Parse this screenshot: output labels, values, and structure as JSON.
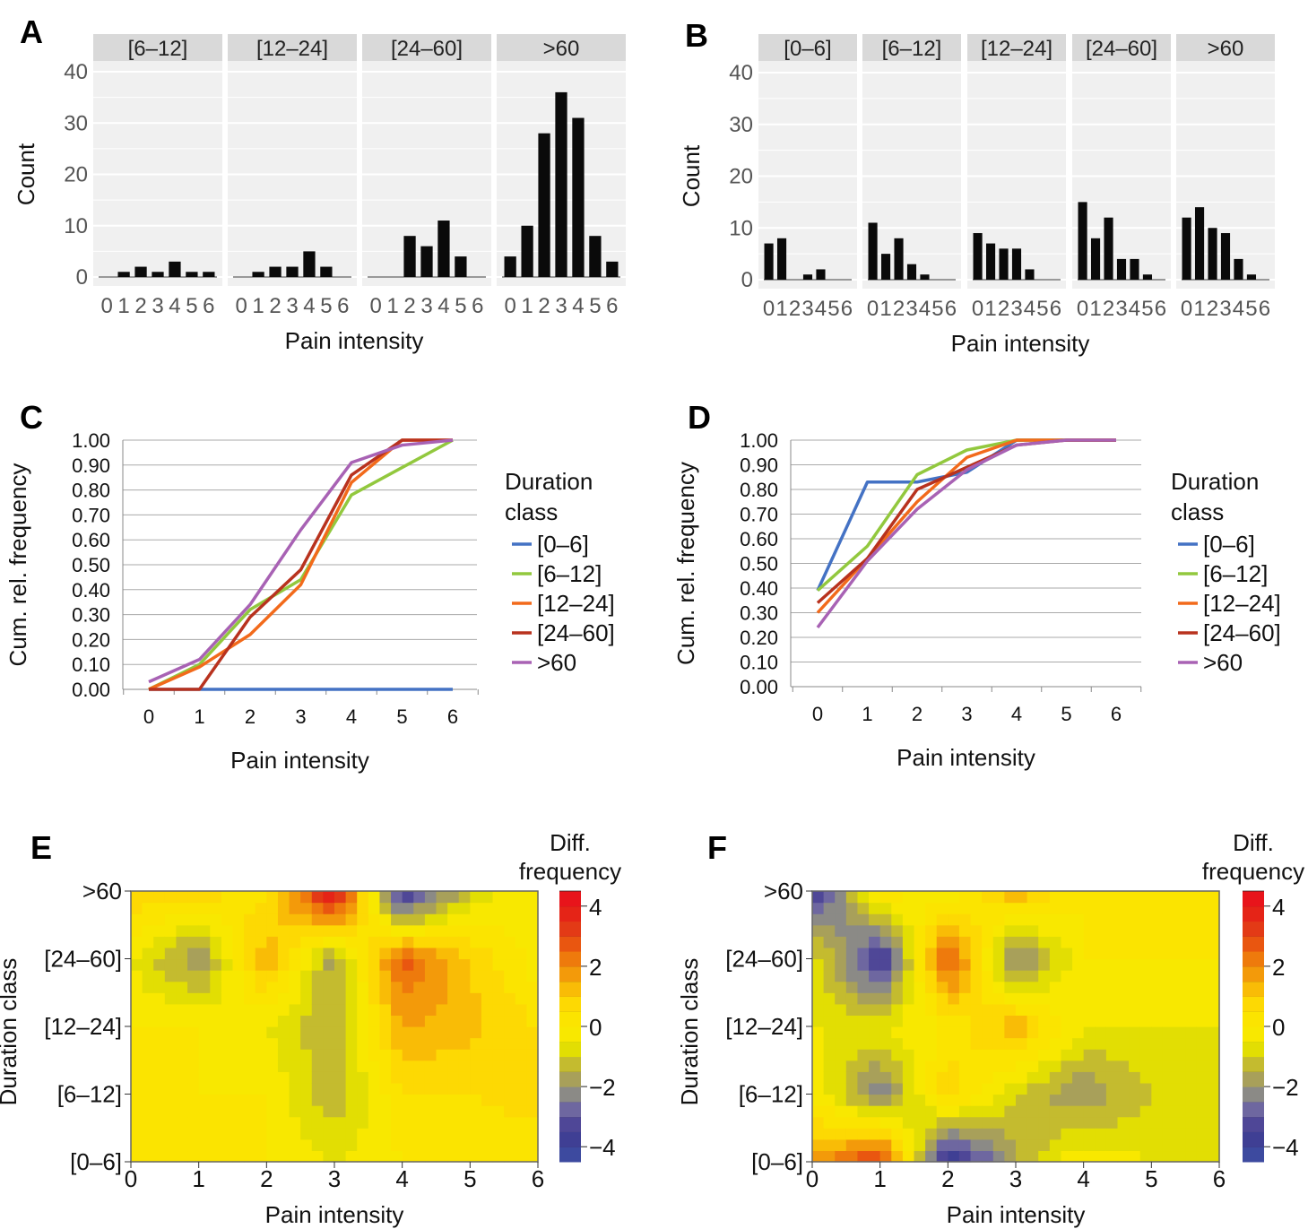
{
  "panel_labels": [
    "A",
    "B",
    "C",
    "D",
    "E",
    "F"
  ],
  "colors": {
    "[0–6]": "#4472c4",
    "[6–12]": "#92c83e",
    "[12–24]": "#f26a1b",
    "[24–60]": "#b8321e",
    ">60": "#a862b4"
  },
  "chart_data": [
    {
      "panel": "A",
      "type": "bar",
      "title": "",
      "xlabel": "Pain intensity",
      "ylabel": "Count",
      "ylim": [
        0,
        40
      ],
      "yticks": [
        0,
        10,
        20,
        30,
        40
      ],
      "categories": [
        "0",
        "1",
        "2",
        "3",
        "4",
        "5",
        "6"
      ],
      "series": [
        {
          "name": "[6–12]",
          "values": [
            0,
            1,
            2,
            1,
            3,
            1,
            1
          ]
        },
        {
          "name": "[12–24]",
          "values": [
            0,
            1,
            2,
            2,
            5,
            2,
            0
          ]
        },
        {
          "name": "[24–60]",
          "values": [
            0,
            0,
            8,
            6,
            11,
            4,
            0
          ]
        },
        {
          "name": ">60",
          "values": [
            4,
            10,
            28,
            36,
            31,
            8,
            3
          ]
        }
      ]
    },
    {
      "panel": "B",
      "type": "bar",
      "title": "",
      "xlabel": "Pain intensity",
      "ylabel": "Count",
      "ylim": [
        0,
        40
      ],
      "yticks": [
        0,
        10,
        20,
        30,
        40
      ],
      "categories": [
        "0",
        "1",
        "2",
        "3",
        "4",
        "5",
        "6"
      ],
      "series": [
        {
          "name": "[0–6]",
          "values": [
            7,
            8,
            0,
            1,
            2,
            0,
            0
          ]
        },
        {
          "name": "[6–12]",
          "values": [
            11,
            5,
            8,
            3,
            1,
            0,
            0
          ]
        },
        {
          "name": "[12–24]",
          "values": [
            9,
            7,
            6,
            6,
            2,
            0,
            0
          ]
        },
        {
          "name": "[24–60]",
          "values": [
            15,
            8,
            12,
            4,
            4,
            1,
            0
          ]
        },
        {
          "name": ">60",
          "values": [
            12,
            14,
            10,
            9,
            4,
            1,
            0
          ]
        }
      ]
    },
    {
      "panel": "C",
      "type": "line",
      "xlabel": "Pain intensity",
      "ylabel": "Cum. rel. frequency",
      "ylim": [
        0,
        1
      ],
      "yticks": [
        "0.00",
        "0.10",
        "0.20",
        "0.30",
        "0.40",
        "0.50",
        "0.60",
        "0.70",
        "0.80",
        "0.90",
        "1.00"
      ],
      "x": [
        0,
        1,
        2,
        3,
        4,
        5,
        6
      ],
      "legend_title": "Duration class",
      "legend": "right",
      "series": [
        {
          "name": "[0–6]",
          "values": [
            0,
            0,
            0,
            0,
            0,
            0,
            0
          ]
        },
        {
          "name": "[6–12]",
          "values": [
            0,
            0.1,
            0.32,
            0.44,
            0.78,
            0.89,
            1.0
          ]
        },
        {
          "name": "[12–24]",
          "values": [
            0,
            0.09,
            0.22,
            0.42,
            0.83,
            1.0,
            1.0
          ]
        },
        {
          "name": "[24–60]",
          "values": [
            0,
            0,
            0.29,
            0.48,
            0.86,
            1.0,
            1.0
          ]
        },
        {
          "name": ">60",
          "values": [
            0.03,
            0.12,
            0.34,
            0.64,
            0.91,
            0.98,
            1.0
          ]
        }
      ]
    },
    {
      "panel": "D",
      "type": "line",
      "xlabel": "Pain intensity",
      "ylabel": "Cum. rel. frequency",
      "ylim": [
        0,
        1
      ],
      "yticks": [
        "0.00",
        "0.10",
        "0.20",
        "0.30",
        "0.40",
        "0.50",
        "0.60",
        "0.70",
        "0.80",
        "0.90",
        "1.00"
      ],
      "x": [
        0,
        1,
        2,
        3,
        4,
        5,
        6
      ],
      "legend_title": "Duration class",
      "legend": "right",
      "series": [
        {
          "name": "[0–6]",
          "values": [
            0.39,
            0.83,
            0.83,
            0.87,
            1.0,
            1.0,
            1.0
          ]
        },
        {
          "name": "[6–12]",
          "values": [
            0.39,
            0.57,
            0.86,
            0.96,
            1.0,
            1.0,
            1.0
          ]
        },
        {
          "name": "[12–24]",
          "values": [
            0.3,
            0.52,
            0.75,
            0.93,
            1.0,
            1.0,
            1.0
          ]
        },
        {
          "name": "[24–60]",
          "values": [
            0.34,
            0.52,
            0.8,
            0.89,
            0.98,
            1.0,
            1.0
          ]
        },
        {
          "name": ">60",
          "values": [
            0.24,
            0.51,
            0.72,
            0.88,
            0.98,
            1.0,
            1.0
          ]
        }
      ]
    },
    {
      "panel": "E",
      "type": "heatmap",
      "xlabel": "Pain intensity",
      "ylabel": "Duration class",
      "colorbar_title": "Diff. frequency",
      "x": [
        "0",
        "1",
        "2",
        "3",
        "4",
        "5",
        "6"
      ],
      "y": [
        "[0–6]",
        "[6–12]",
        "[12–24]",
        "[24–60]",
        ">60"
      ],
      "zlim": [
        -4.5,
        4.5
      ],
      "colorbar_ticks": [
        "4",
        "2",
        "0",
        "−2",
        "−4"
      ],
      "z": [
        [
          0,
          0,
          0,
          -0.5,
          0,
          0,
          0
        ],
        [
          0,
          0,
          0,
          -1.5,
          0.5,
          0.5,
          0.8
        ],
        [
          0,
          0,
          -0.5,
          -1.5,
          1.5,
          1.2,
          0.5
        ],
        [
          -0.5,
          -2,
          1.5,
          -1.8,
          2.8,
          1,
          -0.3
        ],
        [
          1,
          0.8,
          0.3,
          4.5,
          -4.2,
          -1,
          0
        ]
      ]
    },
    {
      "panel": "F",
      "type": "heatmap",
      "xlabel": "Pain intensity",
      "ylabel": "Duration class",
      "colorbar_title": "Diff. frequency",
      "x": [
        "0",
        "1",
        "2",
        "3",
        "4",
        "5",
        "6"
      ],
      "y": [
        "[0–6]",
        "[6–12]",
        "[12–24]",
        "[24–60]",
        ">60"
      ],
      "zlim": [
        -4.5,
        4.5
      ],
      "colorbar_ticks": [
        "4",
        "2",
        "0",
        "−2",
        "−4"
      ],
      "z": [
        [
          1.5,
          3.5,
          -4.5,
          -1.5,
          0,
          -0.5,
          -0.5
        ],
        [
          0,
          -2.5,
          1,
          -1,
          -2,
          -1,
          -0.5
        ],
        [
          -0.5,
          -0.5,
          0,
          1.5,
          -0.5,
          -0.5,
          -0.5
        ],
        [
          -0.5,
          -4,
          3,
          -2.5,
          0,
          0,
          0
        ],
        [
          -4,
          0.5,
          -0.5,
          1.5,
          0,
          0,
          0
        ]
      ]
    }
  ]
}
